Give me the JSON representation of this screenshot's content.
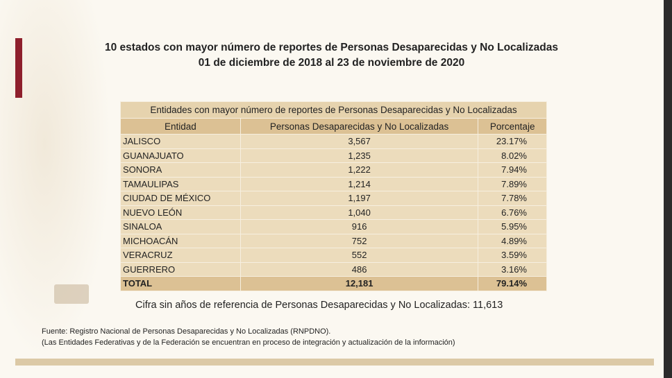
{
  "header": {
    "title": "10 estados con mayor número de reportes de Personas Desaparecidas y No Localizadas",
    "subtitle": "01 de diciembre de 2018 al 23 de noviembre de 2020"
  },
  "table": {
    "caption": "Entidades con mayor número de reportes de Personas Desaparecidas y No Localizadas",
    "columns": [
      "Entidad",
      "Personas Desaparecidas y No Localizadas",
      "Porcentaje"
    ],
    "rows": [
      [
        "JALISCO",
        "3,567",
        "23.17%"
      ],
      [
        "GUANAJUATO",
        "1,235",
        "8.02%"
      ],
      [
        "SONORA",
        "1,222",
        "7.94%"
      ],
      [
        "TAMAULIPAS",
        "1,214",
        "7.89%"
      ],
      [
        "CIUDAD DE MÉXICO",
        "1,197",
        "7.78%"
      ],
      [
        "NUEVO LEÓN",
        "1,040",
        "6.76%"
      ],
      [
        "SINALOA",
        "916",
        "5.95%"
      ],
      [
        "MICHOACÁN",
        "752",
        "4.89%"
      ],
      [
        "VERACRUZ",
        "552",
        "3.59%"
      ],
      [
        "GUERRERO",
        "486",
        "3.16%"
      ]
    ],
    "total": [
      "TOTAL",
      "12,181",
      "79.14%"
    ]
  },
  "note": "Cifra sin años de referencia de Personas Desaparecidas y No Localizadas: 11,613",
  "footer": {
    "source": "Fuente: Registro Nacional de Personas Desaparecidas y No Localizadas (RNPDNO).",
    "remark": "(Las Entidades Federativas y de la Federación se encuentran en proceso de integración y actualización de la información)"
  }
}
